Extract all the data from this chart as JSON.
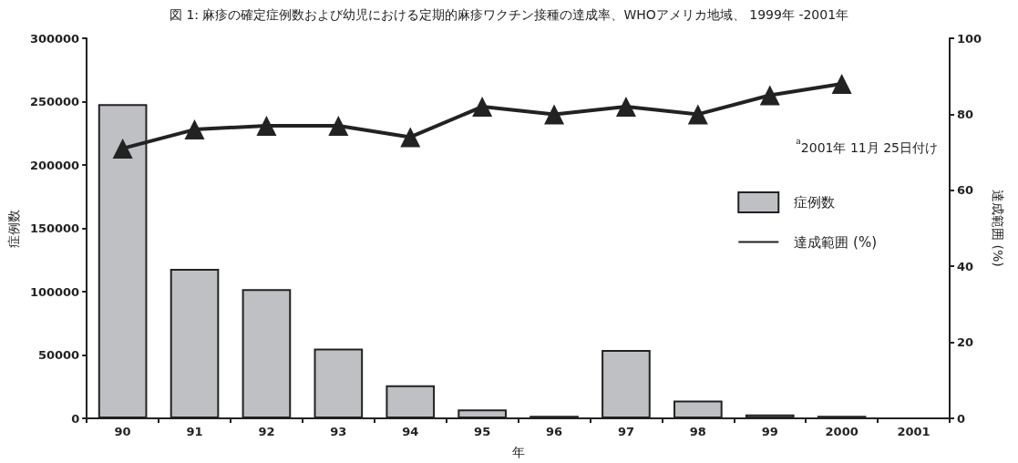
{
  "chart_data": {
    "type": "bar",
    "title": "図 1: 麻疹の確定症例数および幼児における定期的麻疹ワクチン接種の達成率、WHOアメリカ地域、 1999年 -2001年",
    "xlabel": "年",
    "ylabel": "症例数",
    "y2label": "達成範囲 (%)",
    "categories": [
      "90",
      "91",
      "92",
      "93",
      "94",
      "95",
      "96",
      "97",
      "98",
      "99",
      "2000",
      "2001"
    ],
    "series": [
      {
        "name": "症例数",
        "color": "#bfc0c4",
        "values": [
          248000,
          118000,
          102000,
          55000,
          26000,
          7000,
          2000,
          54000,
          14000,
          3000,
          2000,
          null
        ]
      },
      {
        "name": "達成範囲 (%)",
        "type": "line",
        "axis": "y2",
        "color": "#222222",
        "marker": "triangle",
        "line_style": "solid",
        "values": [
          71,
          76,
          77,
          77,
          74,
          82,
          80,
          82,
          80,
          85,
          88,
          null
        ]
      }
    ],
    "ylim": [
      0,
      300000
    ],
    "yticks": [
      0,
      50000,
      100000,
      150000,
      200000,
      250000,
      300000
    ],
    "y2lim": [
      0,
      100
    ],
    "y2ticks": [
      0,
      20,
      40,
      60,
      80,
      100
    ],
    "annotations": [
      "$^{a}$2001年 11月 25日付け"
    ],
    "grid": false,
    "legend": "right"
  }
}
